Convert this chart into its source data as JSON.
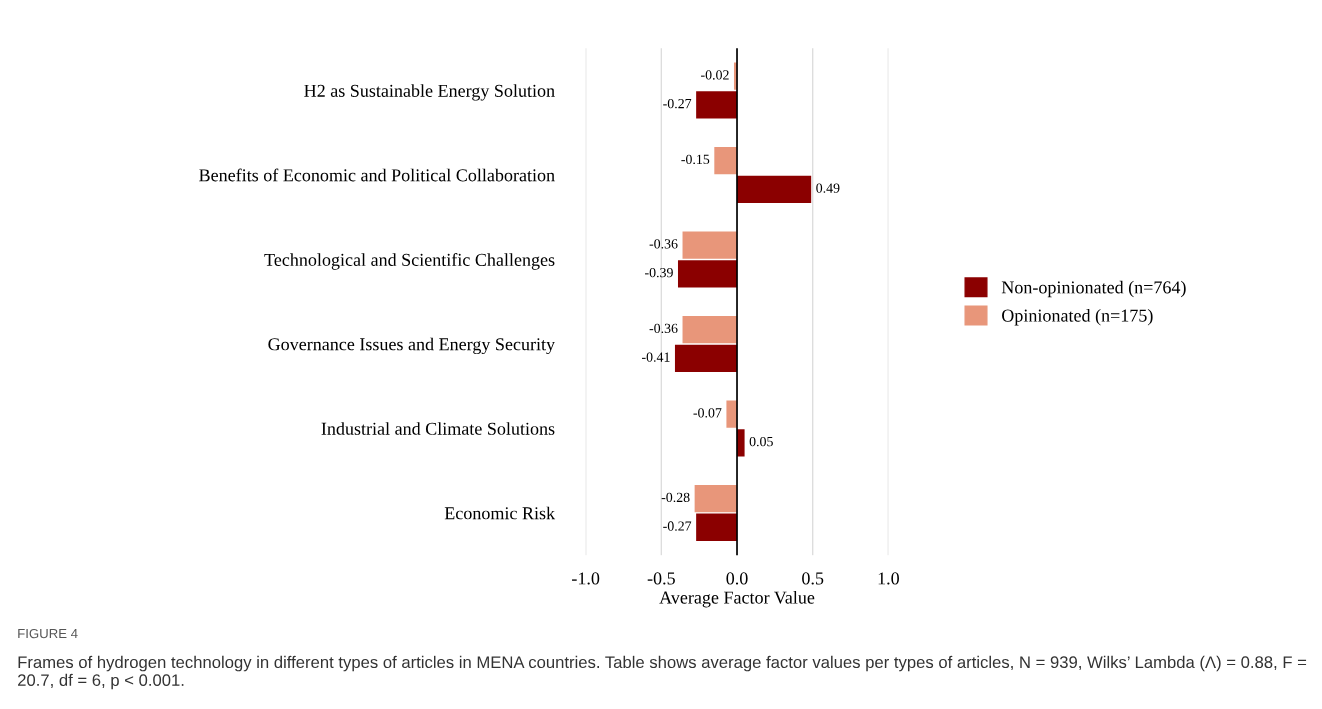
{
  "chart_data": {
    "type": "bar",
    "orientation": "horizontal",
    "categories": [
      "H2 as Sustainable Energy Solution",
      "Benefits of Economic and Political Collaboration",
      "Technological and Scientific Challenges",
      "Governance Issues and Energy Security",
      "Industrial and Climate Solutions",
      "Economic Risk"
    ],
    "series": [
      {
        "name": "Non-opinionated (n=764)",
        "color": "#8b0000",
        "values": [
          -0.27,
          0.49,
          -0.39,
          -0.41,
          0.05,
          -0.27
        ]
      },
      {
        "name": "Opinionated (n=175)",
        "color": "#e8967a",
        "values": [
          -0.02,
          -0.15,
          -0.36,
          -0.36,
          -0.07,
          -0.28
        ]
      }
    ],
    "xlim": [
      -1.0,
      1.0
    ],
    "xticks": [
      {
        "value": -1,
        "label": "-1.0"
      },
      {
        "value": -0.5,
        "label": "-0.5"
      },
      {
        "value": 0,
        "label": "0.0"
      },
      {
        "value": 0.5,
        "label": "0.5"
      },
      {
        "value": 1,
        "label": "1.0"
      }
    ],
    "xlabel": "Average Factor Value",
    "grid": "x",
    "legend": "right",
    "data_labels": true,
    "ref_lines": [
      {
        "axis": "x",
        "value": 0,
        "color": "#000000"
      }
    ],
    "annotations": [
      "FIGURE 4",
      "Frames of hydrogen technology in different types of articles in MENA countries. Table shows average factor values per types of articles, N = 939, Wilks’ Lambda (Λ) = 0.88, F = 20.7, df = 6, p < 0.001."
    ]
  }
}
